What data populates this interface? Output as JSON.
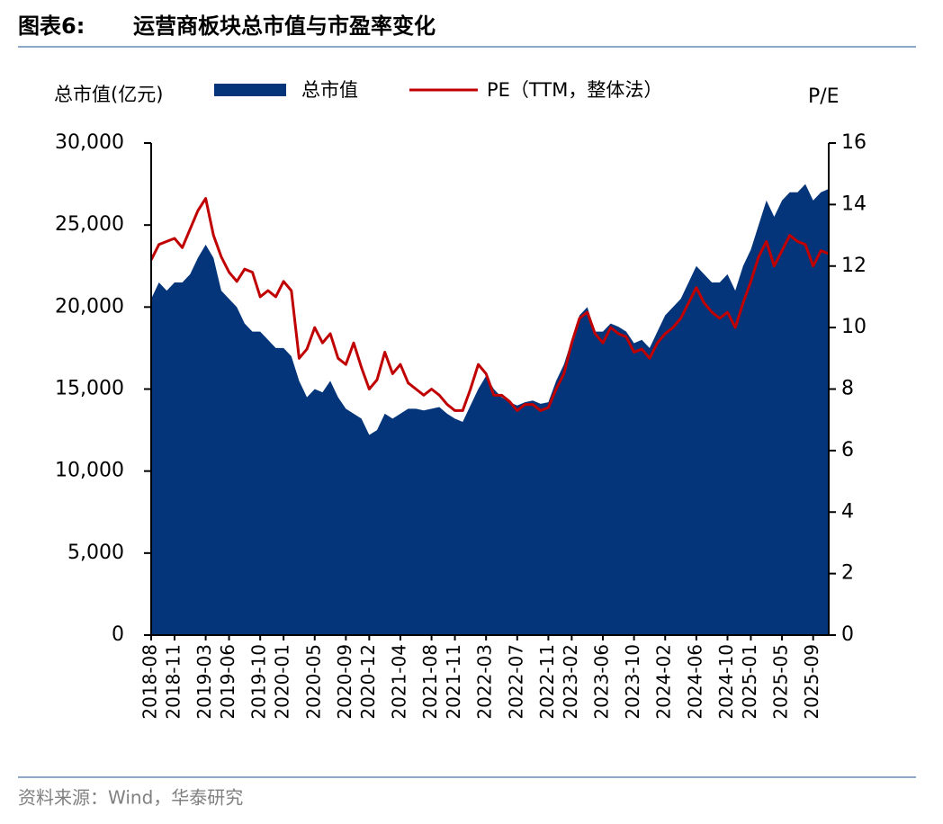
{
  "figure_label": "图表6:",
  "source": "资料来源：Wind，华泰研究",
  "chart_data": {
    "type": "area-line",
    "title": "运营商板块总市值与市盈率变化",
    "y_label": "总市值(亿元)",
    "y2_label": "P/E",
    "x": [
      "2018-08",
      "2018-09",
      "2018-10",
      "2018-11",
      "2018-12",
      "2019-01",
      "2019-02",
      "2019-03",
      "2019-04",
      "2019-05",
      "2019-06",
      "2019-07",
      "2019-08",
      "2019-09",
      "2019-10",
      "2019-11",
      "2019-12",
      "2020-01",
      "2020-02",
      "2020-03",
      "2020-04",
      "2020-05",
      "2020-06",
      "2020-07",
      "2020-08",
      "2020-09",
      "2020-10",
      "2020-11",
      "2020-12",
      "2021-01",
      "2021-02",
      "2021-03",
      "2021-04",
      "2021-05",
      "2021-06",
      "2021-07",
      "2021-08",
      "2021-09",
      "2021-10",
      "2021-11",
      "2021-12",
      "2022-01",
      "2022-02",
      "2022-03",
      "2022-04",
      "2022-05",
      "2022-06",
      "2022-07",
      "2022-08",
      "2022-09",
      "2022-10",
      "2022-11",
      "2022-12",
      "2023-01",
      "2023-02",
      "2023-03",
      "2023-04",
      "2023-05",
      "2023-06",
      "2023-07",
      "2023-08",
      "2023-09",
      "2023-10",
      "2023-11",
      "2023-12",
      "2024-01",
      "2024-02",
      "2024-03",
      "2024-04",
      "2024-05",
      "2024-06",
      "2024-07",
      "2024-08",
      "2024-09",
      "2024-10",
      "2024-11",
      "2024-12",
      "2025-01",
      "2025-02",
      "2025-03",
      "2025-04",
      "2025-05",
      "2025-06",
      "2025-07",
      "2025-08",
      "2025-09",
      "2025-10",
      "2025-11"
    ],
    "xticks": [
      "2018-08",
      "2018-11",
      "2019-03",
      "2019-06",
      "2019-10",
      "2020-01",
      "2020-05",
      "2020-09",
      "2020-12",
      "2021-04",
      "2021-08",
      "2021-11",
      "2022-03",
      "2022-07",
      "2022-11",
      "2023-02",
      "2023-06",
      "2023-10",
      "2024-02",
      "2024-06",
      "2024-10",
      "2025-01",
      "2025-05",
      "2025-09"
    ],
    "series": [
      {
        "name": "总市值",
        "kind": "area",
        "color": "#04357a",
        "values": [
          20500,
          21500,
          21000,
          21500,
          21500,
          22000,
          23000,
          23800,
          23000,
          21000,
          20500,
          20000,
          19000,
          18500,
          18500,
          18000,
          17500,
          17500,
          17000,
          15500,
          14500,
          15000,
          14800,
          15500,
          14500,
          13800,
          13500,
          13200,
          12200,
          12500,
          13500,
          13200,
          13500,
          13800,
          13800,
          13700,
          13800,
          13900,
          13500,
          13200,
          13000,
          14000,
          15000,
          15800,
          15000,
          14500,
          14200,
          14000,
          14200,
          14300,
          14100,
          14200,
          15500,
          16500,
          18000,
          19500,
          20000,
          18500,
          18500,
          19000,
          18800,
          18500,
          17800,
          18000,
          17500,
          18500,
          19500,
          20000,
          20500,
          21500,
          22500,
          22000,
          21500,
          21500,
          22000,
          21000,
          22500,
          23500,
          25000,
          26500,
          25500,
          26500,
          27000,
          27000,
          27500,
          26500,
          27000,
          27200
        ]
      },
      {
        "name": "PE（TTM，整体法）",
        "kind": "line",
        "axis": "y2",
        "color": "#c00000",
        "values": [
          12.2,
          12.7,
          12.8,
          12.9,
          12.6,
          13.2,
          13.8,
          14.2,
          13.0,
          12.3,
          11.8,
          11.5,
          11.9,
          11.8,
          11.0,
          11.2,
          11.0,
          11.5,
          11.2,
          9.0,
          9.3,
          10.0,
          9.5,
          9.8,
          9.0,
          8.8,
          9.5,
          8.7,
          8.0,
          8.3,
          9.2,
          8.5,
          8.8,
          8.2,
          8.0,
          7.8,
          8.0,
          7.8,
          7.5,
          7.3,
          7.3,
          8.0,
          8.8,
          8.5,
          7.8,
          7.8,
          7.6,
          7.3,
          7.5,
          7.5,
          7.3,
          7.4,
          8.0,
          8.5,
          9.5,
          10.3,
          10.5,
          9.8,
          9.5,
          10.0,
          9.8,
          9.7,
          9.2,
          9.3,
          9.0,
          9.5,
          9.8,
          10.0,
          10.3,
          10.8,
          11.3,
          10.8,
          10.5,
          10.3,
          10.5,
          10.0,
          10.8,
          11.5,
          12.3,
          12.8,
          12.0,
          12.5,
          13.0,
          12.8,
          12.7,
          12.0,
          12.5,
          12.4
        ]
      }
    ],
    "ylim": [
      0,
      30000
    ],
    "yticks": [
      0,
      {
        "value": 5000,
        "label": "5,000"
      },
      {
        "value": 10000,
        "label": "10,000"
      },
      {
        "value": 15000,
        "label": "15,000"
      },
      {
        "value": 20000,
        "label": "20,000"
      },
      {
        "value": 25000,
        "label": "25,000"
      },
      {
        "value": 30000,
        "label": "30,000"
      }
    ],
    "y2lim": [
      0,
      16
    ],
    "y2ticks": [
      0,
      2,
      4,
      6,
      8,
      10,
      12,
      14,
      16
    ]
  }
}
